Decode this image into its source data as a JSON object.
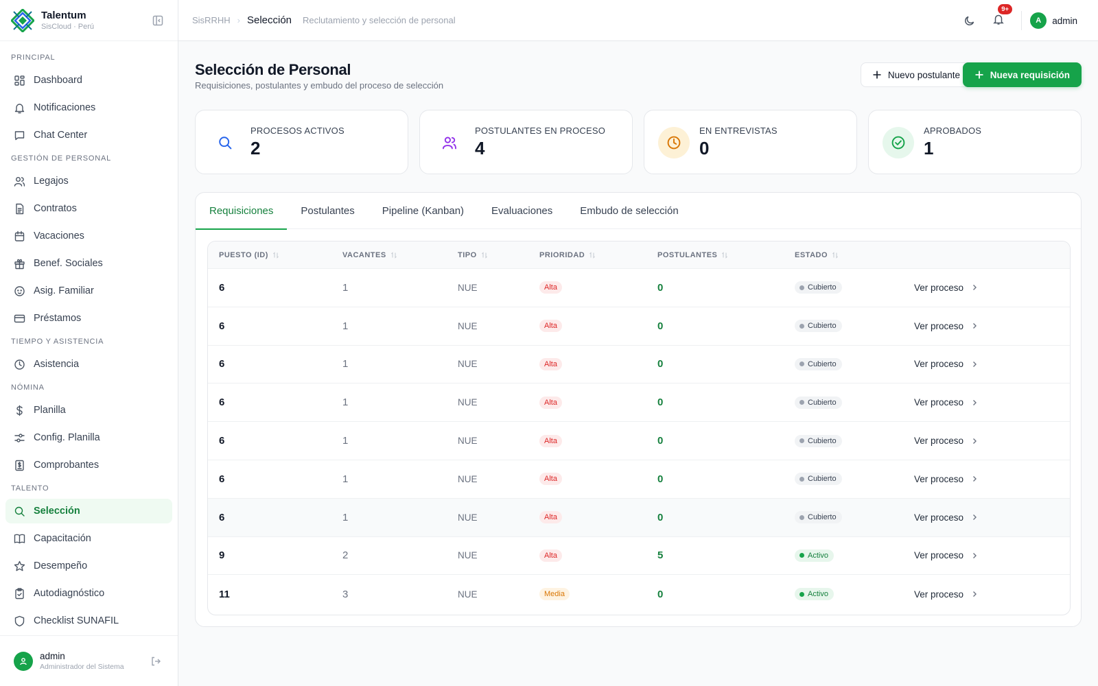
{
  "brand": {
    "name": "Talentum",
    "subtitle": "SisCloud · Perú"
  },
  "sidebar": {
    "sections": [
      {
        "title": "PRINCIPAL",
        "items": [
          {
            "label": "Dashboard",
            "icon": "dashboard-icon"
          },
          {
            "label": "Notificaciones",
            "icon": "bell-icon"
          },
          {
            "label": "Chat Center",
            "icon": "chat-icon"
          }
        ]
      },
      {
        "title": "GESTIÓN DE PERSONAL",
        "items": [
          {
            "label": "Legajos",
            "icon": "users-icon"
          },
          {
            "label": "Contratos",
            "icon": "file-icon"
          },
          {
            "label": "Vacaciones",
            "icon": "calendar-icon"
          },
          {
            "label": "Benef. Sociales",
            "icon": "gift-icon"
          },
          {
            "label": "Asig. Familiar",
            "icon": "baby-icon"
          },
          {
            "label": "Préstamos",
            "icon": "card-icon"
          }
        ]
      },
      {
        "title": "TIEMPO Y ASISTENCIA",
        "items": [
          {
            "label": "Asistencia",
            "icon": "clock-icon"
          }
        ]
      },
      {
        "title": "NÓMINA",
        "items": [
          {
            "label": "Planilla",
            "icon": "dollar-icon"
          },
          {
            "label": "Config. Planilla",
            "icon": "sliders-icon"
          },
          {
            "label": "Comprobantes",
            "icon": "receipt-icon"
          }
        ]
      },
      {
        "title": "TALENTO",
        "items": [
          {
            "label": "Selección",
            "icon": "search-icon",
            "active": true
          },
          {
            "label": "Capacitación",
            "icon": "book-icon"
          },
          {
            "label": "Desempeño",
            "icon": "star-icon"
          },
          {
            "label": "Autodiagnóstico",
            "icon": "clipboard-icon"
          },
          {
            "label": "Checklist SUNAFIL",
            "icon": "shield-icon"
          }
        ]
      }
    ],
    "footer": {
      "name": "admin",
      "role": "Administrador del Sistema"
    }
  },
  "topbar": {
    "crumb_root": "SisRRHH",
    "crumb_current": "Selección",
    "crumb_desc": "Reclutamiento y selección de personal",
    "notif_badge": "9+",
    "user_initial": "A",
    "user_name": "admin"
  },
  "page": {
    "title": "Selección de Personal",
    "subtitle": "Requisiciones, postulantes y embudo del proceso de selección",
    "btn_new_applicant": "Nuevo postulante",
    "btn_new_requisition": "Nueva requisición"
  },
  "stats": [
    {
      "label": "PROCESOS ACTIVOS",
      "value": "2",
      "icon": "search-icon",
      "color": "#2563eb",
      "bg": "#ffffff"
    },
    {
      "label": "POSTULANTES EN PROCESO",
      "value": "4",
      "icon": "users-icon",
      "color": "#9333ea",
      "bg": "#ffffff"
    },
    {
      "label": "EN ENTREVISTAS",
      "value": "0",
      "icon": "clock-icon",
      "color": "#d97706",
      "bg": "#fdf1d6"
    },
    {
      "label": "APROBADOS",
      "value": "1",
      "icon": "check-circle-icon",
      "color": "#16a34a",
      "bg": "#e6f7ec"
    }
  ],
  "tabs": [
    {
      "label": "Requisiciones",
      "active": true
    },
    {
      "label": "Postulantes"
    },
    {
      "label": "Pipeline (Kanban)"
    },
    {
      "label": "Evaluaciones"
    },
    {
      "label": "Embudo de selección"
    }
  ],
  "table": {
    "headers": {
      "puesto": "PUESTO (ID)",
      "vacantes": "VACANTES",
      "tipo": "TIPO",
      "prioridad": "PRIORIDAD",
      "postulantes": "POSTULANTES",
      "estado": "ESTADO"
    },
    "action_label": "Ver proceso",
    "rows": [
      {
        "puesto": "6",
        "vacantes": "1",
        "tipo": "NUE",
        "prioridad": "Alta",
        "postulantes": "0",
        "estado": "Cubierto"
      },
      {
        "puesto": "6",
        "vacantes": "1",
        "tipo": "NUE",
        "prioridad": "Alta",
        "postulantes": "0",
        "estado": "Cubierto"
      },
      {
        "puesto": "6",
        "vacantes": "1",
        "tipo": "NUE",
        "prioridad": "Alta",
        "postulantes": "0",
        "estado": "Cubierto"
      },
      {
        "puesto": "6",
        "vacantes": "1",
        "tipo": "NUE",
        "prioridad": "Alta",
        "postulantes": "0",
        "estado": "Cubierto"
      },
      {
        "puesto": "6",
        "vacantes": "1",
        "tipo": "NUE",
        "prioridad": "Alta",
        "postulantes": "0",
        "estado": "Cubierto"
      },
      {
        "puesto": "6",
        "vacantes": "1",
        "tipo": "NUE",
        "prioridad": "Alta",
        "postulantes": "0",
        "estado": "Cubierto"
      },
      {
        "puesto": "6",
        "vacantes": "1",
        "tipo": "NUE",
        "prioridad": "Alta",
        "postulantes": "0",
        "estado": "Cubierto"
      },
      {
        "puesto": "9",
        "vacantes": "2",
        "tipo": "NUE",
        "prioridad": "Alta",
        "postulantes": "5",
        "estado": "Activo"
      },
      {
        "puesto": "11",
        "vacantes": "3",
        "tipo": "NUE",
        "prioridad": "Media",
        "postulantes": "0",
        "estado": "Activo"
      }
    ]
  },
  "colors": {
    "accent": "#16a34a",
    "accent_dark": "#15803d",
    "danger": "#dc2626",
    "warning": "#d97706"
  }
}
